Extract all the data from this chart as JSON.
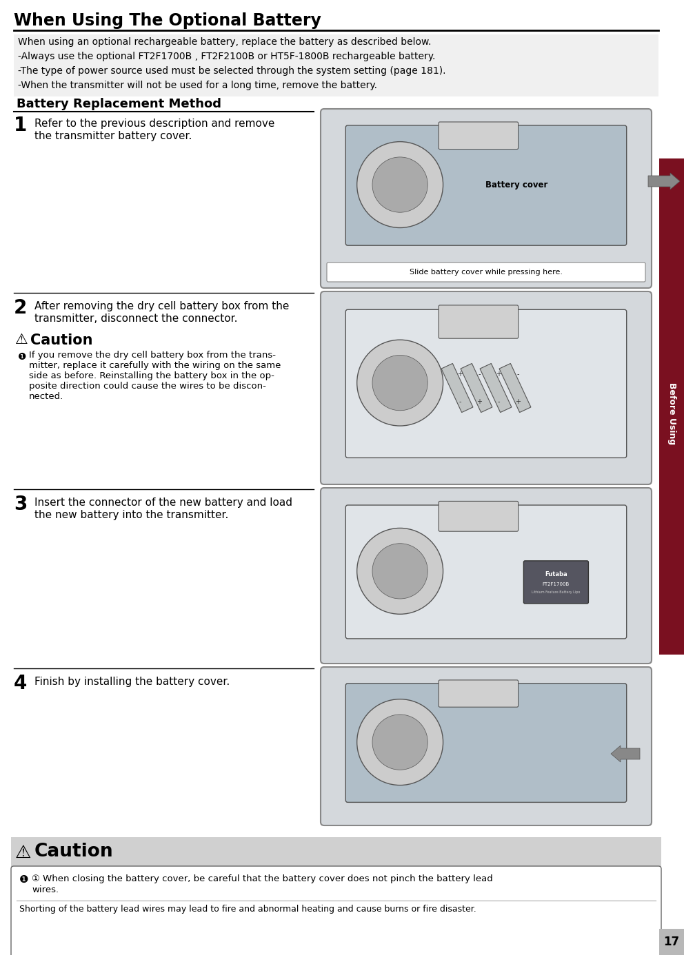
{
  "bg_color": "#ffffff",
  "sidebar_color": "#7a1020",
  "sidebar_text": "Before Using",
  "page_number": "17",
  "main_title": "When Using The Optional Battery",
  "main_title_fontsize": 17,
  "intro_lines": [
    "When using an optional rechargeable battery, replace the battery as described below.",
    "-Always use the optional FT2F1700B , FT2F2100B or HT5F-1800B rechargeable battery.",
    "-The type of power source used must be selected through the system setting (page 181).",
    "-When the transmitter will not be used for a long time, remove the battery."
  ],
  "section_title": "Battery Replacement Method",
  "section_title_fontsize": 13,
  "step1_num": "1",
  "step1_text_line1": "Refer to the previous description and remove",
  "step1_text_line2": "the transmitter battery cover.",
  "step1_caption": "Slide battery cover while pressing here.",
  "step1_battery_cover_label": "Battery cover",
  "step2_num": "2",
  "step2_text_line1": "After removing the dry cell battery box from the",
  "step2_text_line2": "transmitter, disconnect the connector.",
  "caution2_title": "Caution",
  "caution2_text_lines": [
    "If you remove the dry cell battery box from the trans-",
    "mitter, replace it carefully with the wiring on the same",
    "side as before. Reinstalling the battery box in the op-",
    "posite direction could cause the wires to be discon-",
    "nected."
  ],
  "step3_num": "3",
  "step3_text_line1": "Insert the connector of the new battery and load",
  "step3_text_line2": "the new battery into the transmitter.",
  "step4_num": "4",
  "step4_text": "Finish by installing the battery cover.",
  "caution_bottom_title": "Caution",
  "caution_bottom_main_line1": "① When closing the battery cover, be careful that the battery cover does not pinch the battery lead",
  "caution_bottom_main_line2": "wires.",
  "caution_bottom_sub": "Shorting of the battery lead wires may lead to fire and abnormal heating and cause burns or fire disaster.",
  "img_bg": "#d4d8dc",
  "img_border": "#888888",
  "caution_bg": "#d0d0d0"
}
